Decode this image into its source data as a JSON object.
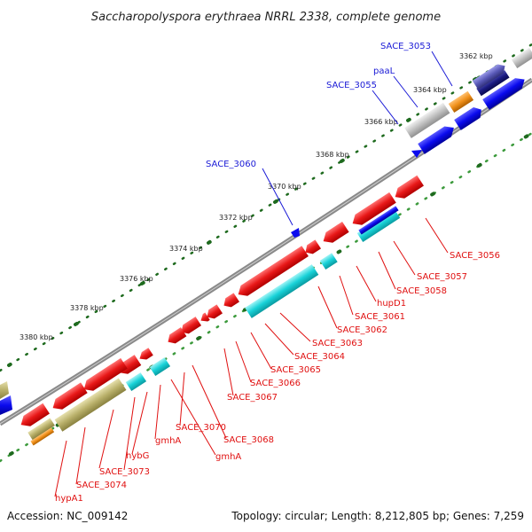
{
  "title": "Saccharopolyspora erythraea NRRL 2338, complete genome",
  "footer": {
    "accession": "Accession: NC_009142",
    "summary": "Topology: circular; Length: 8,212,805 bp; Genes: 7,259"
  },
  "kbp_labels": [
    "3362 kbp",
    "3364 kbp",
    "3366 kbp",
    "3368 kbp",
    "3370 kbp",
    "3372 kbp",
    "3374 kbp",
    "3376 kbp",
    "3378 kbp",
    "3380 kbp"
  ],
  "forward_labels": [
    "SACE_3053",
    "paaL",
    "SACE_3055",
    "SACE_3060"
  ],
  "reverse_labels": [
    "SACE_3056",
    "SACE_3057",
    "SACE_3058",
    "hupD1",
    "SACE_3061",
    "SACE_3062",
    "SACE_3063",
    "SACE_3064",
    "SACE_3065",
    "SACE_3066",
    "SACE_3067",
    "SACE_3068",
    "SACE_3070",
    "gmhA",
    "gmhA",
    "hybG",
    "SACE_3073",
    "SACE_3074",
    "hypA1"
  ],
  "colors": {
    "forward_label": "#1a1ad6",
    "reverse_label": "#e01010",
    "backbone": "#888888",
    "dots_dark": "#1e6a1e",
    "dots_light": "#3c9a3c",
    "cds_red": "#e81818",
    "cds_blue": "#0a0aee",
    "cds_cyan": "#18d2d8",
    "cds_olive": "#b9b06a",
    "cds_gray": "#c0c0c0",
    "cds_orange": "#f0901a",
    "cds_slate": "#5a5ab8"
  }
}
